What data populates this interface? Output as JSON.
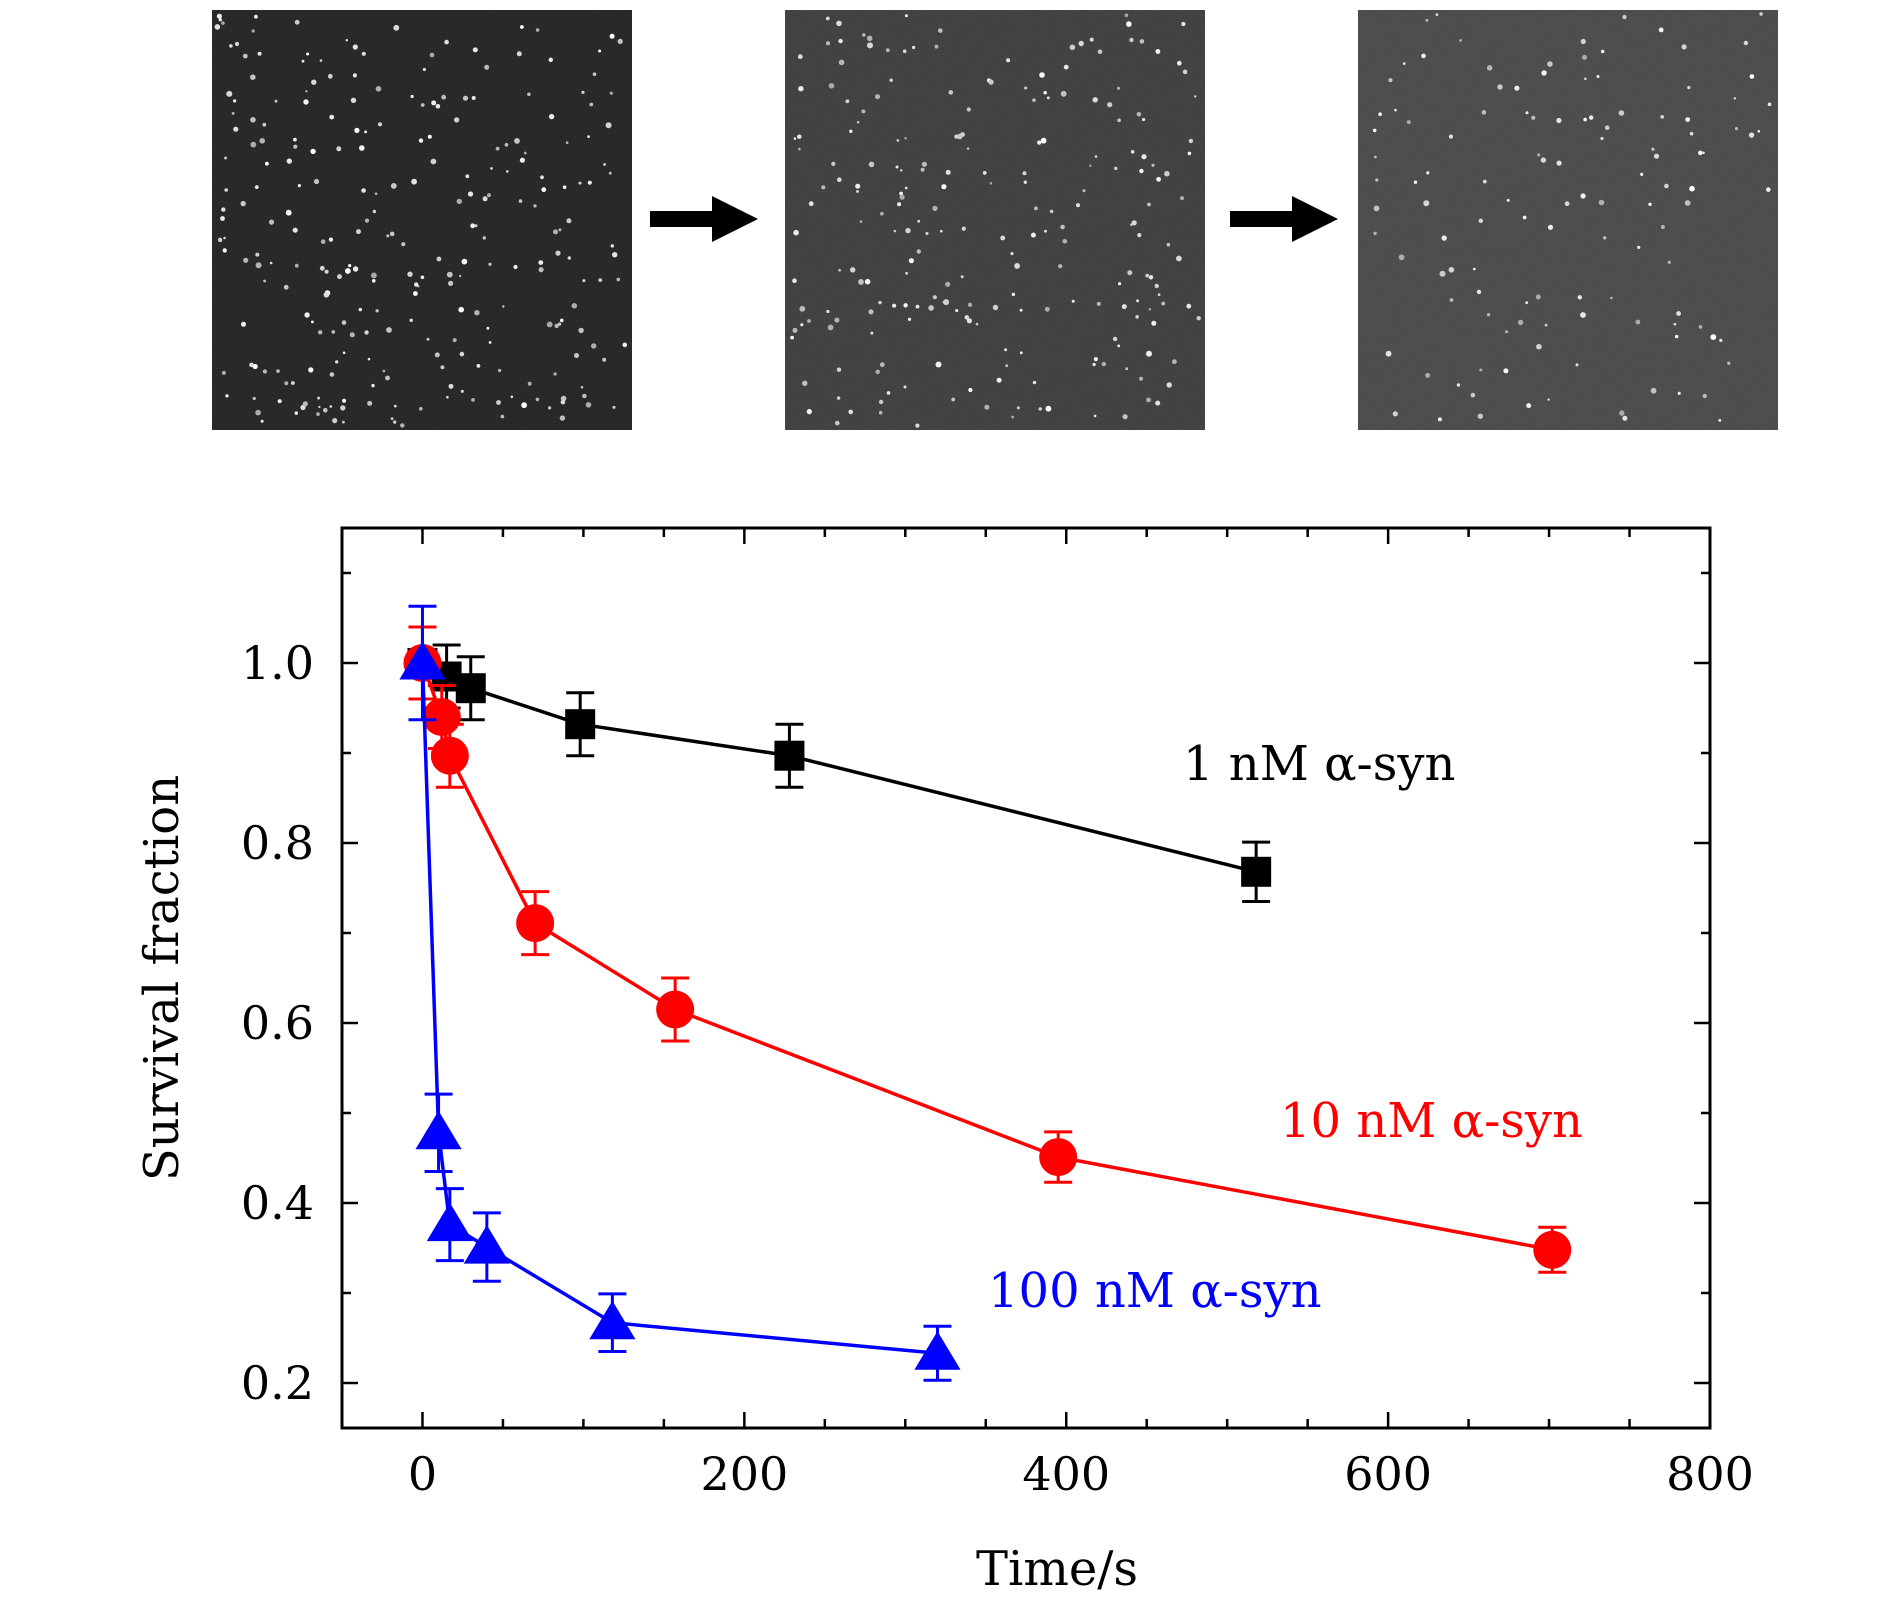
{
  "micrographs": {
    "panels": [
      "micrograph-1",
      "micrograph-2",
      "micrograph-3"
    ],
    "arrow_icon": "right-arrow-icon"
  },
  "chart_data": {
    "type": "line",
    "xlabel": "Time/s",
    "ylabel": "Survival fraction",
    "xlim": [
      -50,
      800
    ],
    "ylim": [
      0.15,
      1.15
    ],
    "xticks": [
      0,
      200,
      400,
      600,
      800
    ],
    "yticks": [
      0.2,
      0.4,
      0.6,
      0.8,
      1.0
    ],
    "xtick_labels": [
      "0",
      "200",
      "400",
      "600",
      "800"
    ],
    "ytick_labels": [
      "0.2",
      "0.4",
      "0.6",
      "0.8",
      "1.0"
    ],
    "series": [
      {
        "name": "1 nM α-syn",
        "color": "#000000",
        "marker": "square",
        "x": [
          0,
          15,
          30,
          98,
          228,
          518
        ],
        "y": [
          1.0,
          0.985,
          0.972,
          0.932,
          0.897,
          0.768
        ],
        "err": [
          0.04,
          0.035,
          0.035,
          0.035,
          0.035,
          0.033
        ]
      },
      {
        "name": "10 nM α-syn",
        "color": "#ff0000",
        "marker": "circle",
        "x": [
          0,
          12,
          17,
          70,
          157,
          395,
          702
        ],
        "y": [
          1.0,
          0.94,
          0.897,
          0.711,
          0.615,
          0.451,
          0.348
        ],
        "err": [
          0.04,
          0.035,
          0.035,
          0.035,
          0.035,
          0.028,
          0.025
        ]
      },
      {
        "name": "100 nM α-syn",
        "color": "#0000ff",
        "marker": "triangle",
        "x": [
          0,
          10,
          17,
          40,
          118,
          320
        ],
        "y": [
          1.0,
          0.478,
          0.376,
          0.351,
          0.267,
          0.233
        ],
        "err": [
          0.063,
          0.043,
          0.04,
          0.038,
          0.032,
          0.03
        ]
      }
    ]
  }
}
